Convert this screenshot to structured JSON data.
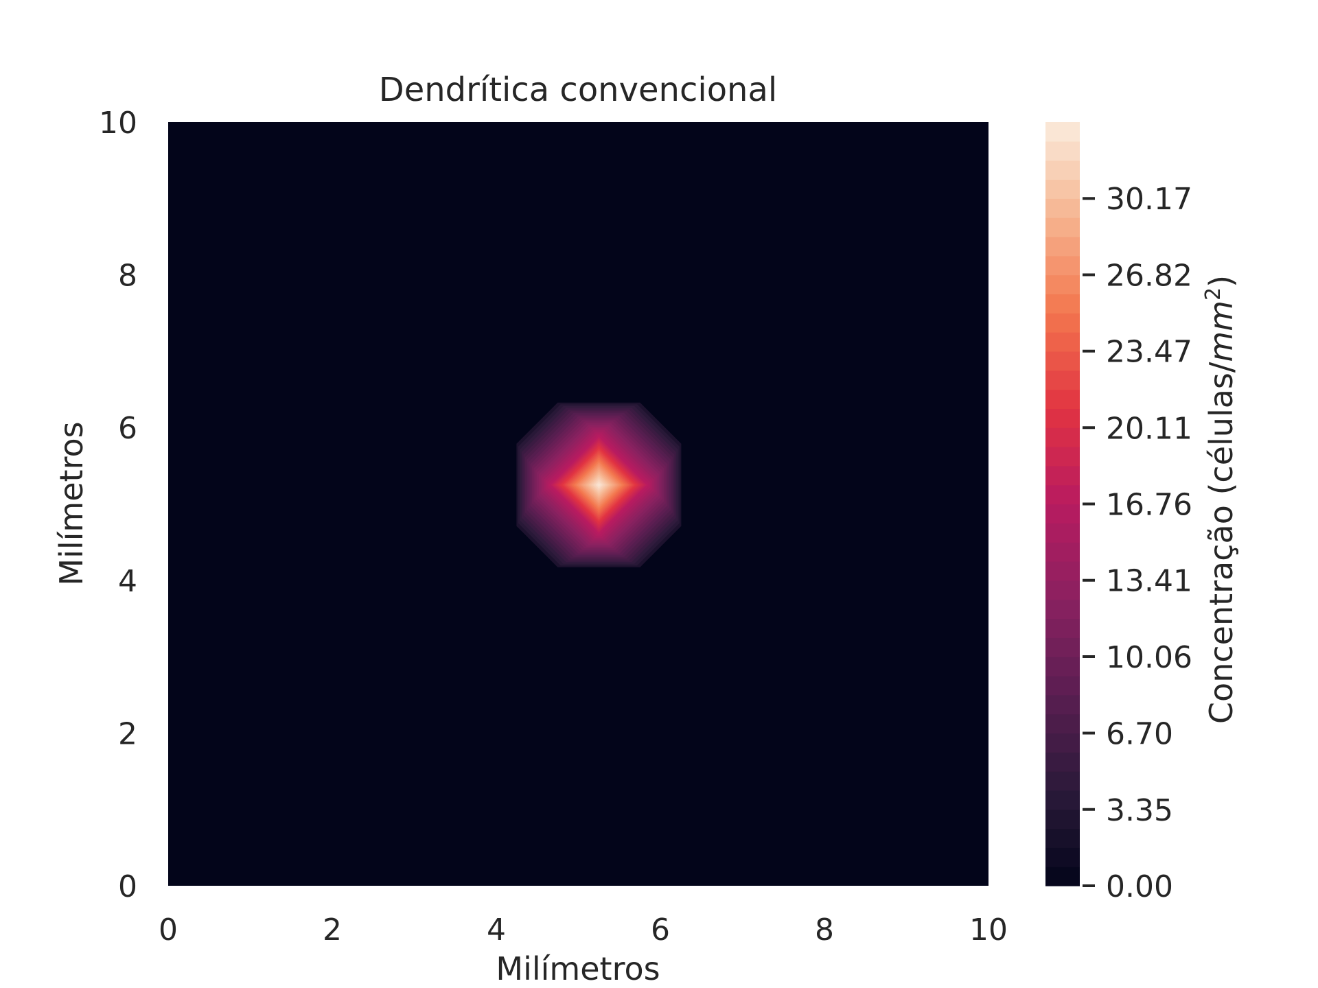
{
  "chart_data": {
    "type": "heatmap",
    "title": "Dendrítica convencional",
    "xlabel": "Milímetros",
    "ylabel": "Milímetros",
    "xlim": [
      0,
      10
    ],
    "ylim": [
      0,
      10
    ],
    "x_ticks": [
      "0",
      "2",
      "4",
      "6",
      "8",
      "10"
    ],
    "y_ticks": [
      "0",
      "2",
      "4",
      "6",
      "8",
      "10"
    ],
    "grid": false,
    "colorbar": {
      "label_main": "Concentração (células/",
      "label_unit": "mm",
      "label_exponent": "2",
      "label_close": ")",
      "min": 0,
      "max": 33.52,
      "ticks": [
        0.0,
        3.35,
        6.7,
        10.06,
        13.41,
        16.76,
        20.11,
        23.47,
        26.82,
        30.17
      ],
      "tick_labels": [
        "0.00",
        "3.35",
        "6.70",
        "10.06",
        "13.41",
        "16.76",
        "20.11",
        "23.47",
        "26.82",
        "30.17"
      ],
      "colormap": "rocket",
      "colormap_stops": [
        "#03051a",
        "#2b1a3a",
        "#5a1e51",
        "#8a2160",
        "#b81b60",
        "#e13342",
        "#f3764e",
        "#f6b48f",
        "#faebdd"
      ]
    },
    "peak": {
      "x": 5.25,
      "y": 5.25,
      "value": 33.52
    },
    "background_value": 0.0,
    "colors": {
      "background": "#03051a",
      "text": "#262626"
    }
  }
}
